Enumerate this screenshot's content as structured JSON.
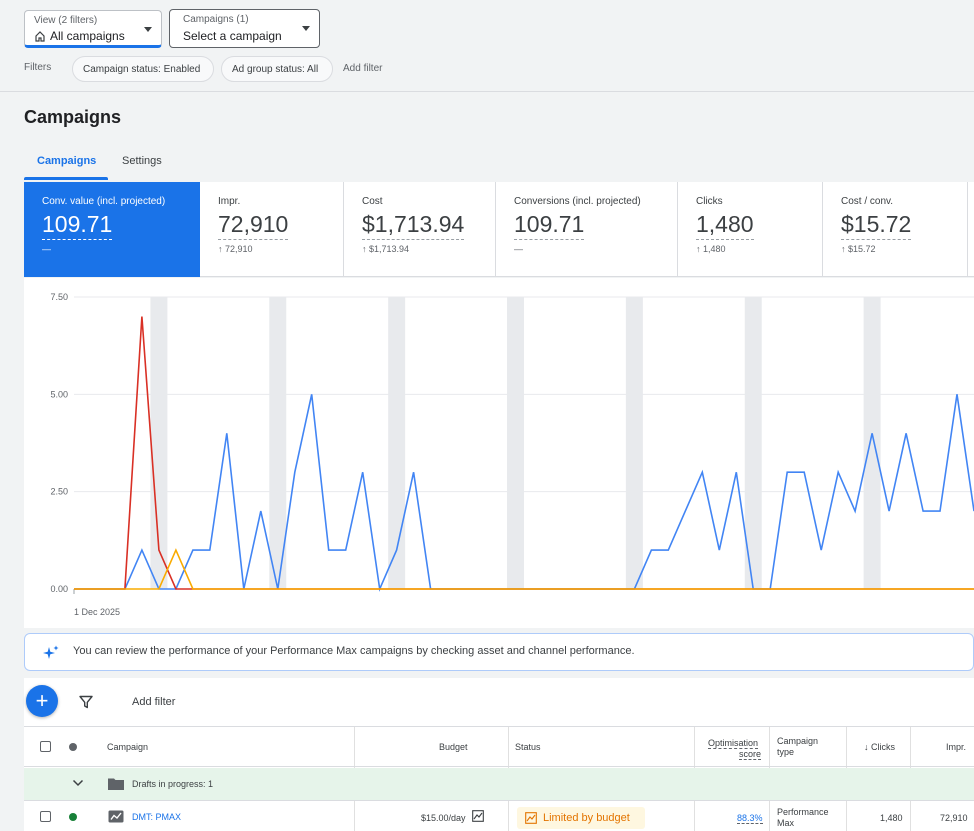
{
  "view_selector": {
    "small_label": "View (2 filters)",
    "value": "All campaigns",
    "icon": "home-icon"
  },
  "campaign_selector": {
    "small_label": "Campaigns (1)",
    "value": "Select a campaign"
  },
  "filters": {
    "label": "Filters",
    "chips": [
      "Campaign status: Enabled",
      "Ad group status: All"
    ],
    "add_filter": "Add filter"
  },
  "page_title": "Campaigns",
  "tabs": [
    {
      "label": "Campaigns",
      "active": true
    },
    {
      "label": "Settings",
      "active": false
    }
  ],
  "metrics": [
    {
      "label": "Conv. value (incl. projected)",
      "value": "109.71",
      "sub": "—",
      "selected": true
    },
    {
      "label": "Impr.",
      "value": "72,910",
      "sub": "↑ 72,910",
      "selected": false
    },
    {
      "label": "Cost",
      "value": "$1,713.94",
      "sub": "↑ $1,713.94",
      "selected": false
    },
    {
      "label": "Conversions (incl. projected)",
      "value": "109.71",
      "sub": "—",
      "selected": false
    },
    {
      "label": "Clicks",
      "value": "1,480",
      "sub": "↑ 1,480",
      "selected": false
    },
    {
      "label": "Cost / conv.",
      "value": "$15.72",
      "sub": "↑ $15.72",
      "selected": false
    }
  ],
  "chart_data": {
    "type": "line",
    "title": "",
    "xlabel": "",
    "ylabel": "",
    "x_start_label": "1 Dec 2025",
    "ylim": [
      0,
      7.5
    ],
    "y_ticks": [
      "0.00",
      "2.50",
      "5.00",
      "7.50"
    ],
    "grid": true,
    "num_points": 54,
    "weekend_band_indices": [
      5,
      12,
      19,
      26,
      33,
      40,
      47
    ],
    "series": [
      {
        "color": "#4285f4",
        "values": [
          0,
          0,
          0,
          0,
          1,
          0,
          0,
          1,
          1,
          4,
          0,
          2,
          0,
          3,
          5,
          1,
          1,
          3,
          0,
          1,
          3,
          0,
          0,
          0,
          0,
          0,
          0,
          0,
          0,
          0,
          0,
          0,
          0,
          0,
          1,
          1,
          2,
          3,
          1,
          3,
          0,
          0,
          3,
          3,
          1,
          3,
          2,
          4,
          2,
          4,
          2,
          2,
          5,
          2
        ]
      },
      {
        "color": "#d93025",
        "values": [
          0,
          0,
          0,
          0,
          7,
          1,
          0,
          0,
          0,
          0,
          0,
          0,
          0,
          0,
          0,
          0,
          0,
          0,
          0,
          0,
          0,
          0,
          0,
          0,
          0,
          0,
          0,
          0,
          0,
          0,
          0,
          0,
          0,
          0,
          0,
          0,
          0,
          0,
          0,
          0,
          0,
          0,
          0,
          0,
          0,
          0,
          0,
          0,
          0,
          0,
          0,
          0,
          0,
          0
        ]
      },
      {
        "color": "#f9ab00",
        "values": [
          0,
          0,
          0,
          0,
          0,
          0,
          1,
          0,
          0,
          0,
          0,
          0,
          0,
          0,
          0,
          0,
          0,
          0,
          0,
          0,
          0,
          0,
          0,
          0,
          0,
          0,
          0,
          0,
          0,
          0,
          0,
          0,
          0,
          0,
          0,
          0,
          0,
          0,
          0,
          0,
          0,
          0,
          0,
          0,
          0,
          0,
          0,
          0,
          0,
          0,
          0,
          0,
          0,
          0
        ]
      }
    ]
  },
  "banner": {
    "text": "You can review the performance of your Performance Max campaigns by checking asset and channel performance.",
    "icon": "sparkle-icon"
  },
  "toolbar": {
    "add_icon": "+",
    "add_filter": "Add filter",
    "filter_icon": "funnel-icon"
  },
  "table": {
    "headers": {
      "campaign": "Campaign",
      "budget": "Budget",
      "status": "Status",
      "optimisation_score": [
        "Optimisation",
        "score"
      ],
      "campaign_type": [
        "Campaign",
        "type"
      ],
      "clicks": "↓ Clicks",
      "impr": "Impr."
    },
    "drafts_row": {
      "label": "Drafts in progress: 1"
    },
    "rows": [
      {
        "campaign": "DMT: PMAX",
        "budget": "$15.00/day",
        "status": "Limited by budget",
        "optimisation_score": "88.3%",
        "campaign_type": [
          "Performance",
          "Max"
        ],
        "clicks": "1,480",
        "impr": "72,910",
        "status_color": "#188038"
      }
    ]
  }
}
